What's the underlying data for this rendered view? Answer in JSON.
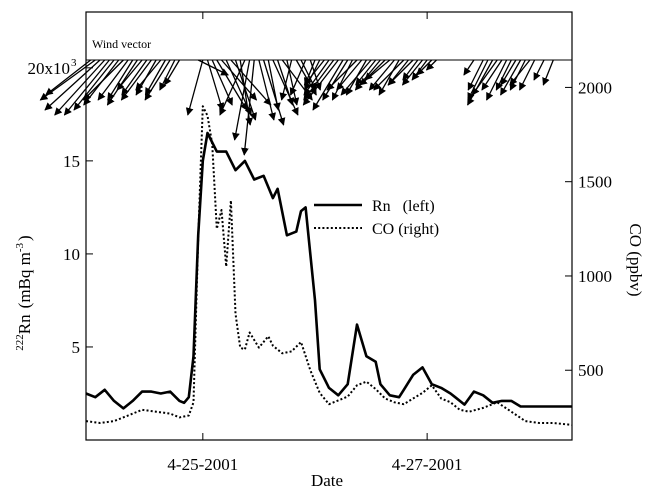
{
  "chart_data": {
    "type": "line",
    "xlabel": "Date",
    "x_tick_labels": [
      "4-25-2001",
      "4-27-2001"
    ],
    "x_range": [
      "2001-04-23T23:00",
      "2001-04-28T07:00"
    ],
    "x_ticks": [
      "2001-04-25T00:00",
      "2001-04-27T00:00"
    ],
    "y_left": {
      "label_sup": "222",
      "label_main": "Rn",
      "label_units": "(mBq m",
      "label_units_sup": "-3",
      "label_close": ")",
      "range": [
        0,
        23000
      ],
      "ticks": [
        5000,
        10000,
        15000,
        20000
      ],
      "tick_labels": [
        "5",
        "10",
        "15",
        "20x10"
      ],
      "multiplier_sup": "3"
    },
    "y_right": {
      "label": "CO (ppbv)",
      "range": [
        130,
        2400
      ],
      "ticks": [
        500,
        1000,
        1500,
        2000
      ],
      "tick_labels": [
        "500",
        "1000",
        "1500",
        "2000"
      ]
    },
    "legend": {
      "position": "upper-right",
      "entries": [
        {
          "text": "Rn   (left)",
          "style": "solid"
        },
        {
          "text": "CO (right)",
          "style": "dotted"
        }
      ]
    },
    "annotation": "Wind vector",
    "series": [
      {
        "name": "Rn (left)",
        "axis": "left",
        "style": "solid",
        "color": "#000000",
        "x": [
          "2001-04-23T23:00",
          "2001-04-24T01:00",
          "2001-04-24T03:00",
          "2001-04-24T05:00",
          "2001-04-24T07:00",
          "2001-04-24T09:00",
          "2001-04-24T11:00",
          "2001-04-24T13:00",
          "2001-04-24T15:00",
          "2001-04-24T17:00",
          "2001-04-24T19:00",
          "2001-04-24T20:00",
          "2001-04-24T21:00",
          "2001-04-24T22:00",
          "2001-04-24T23:00",
          "2001-04-25T00:00",
          "2001-04-25T01:00",
          "2001-04-25T03:00",
          "2001-04-25T05:00",
          "2001-04-25T07:00",
          "2001-04-25T09:00",
          "2001-04-25T11:00",
          "2001-04-25T13:00",
          "2001-04-25T15:00",
          "2001-04-25T16:00",
          "2001-04-25T18:00",
          "2001-04-25T20:00",
          "2001-04-25T21:00",
          "2001-04-25T22:00",
          "2001-04-26T00:00",
          "2001-04-26T01:00",
          "2001-04-26T03:00",
          "2001-04-26T05:00",
          "2001-04-26T07:00",
          "2001-04-26T09:00",
          "2001-04-26T11:00",
          "2001-04-26T13:00",
          "2001-04-26T14:00",
          "2001-04-26T16:00",
          "2001-04-26T18:00",
          "2001-04-26T19:00",
          "2001-04-26T21:00",
          "2001-04-26T23:00",
          "2001-04-27T01:00",
          "2001-04-27T03:00",
          "2001-04-27T05:00",
          "2001-04-27T06:00",
          "2001-04-27T08:00",
          "2001-04-27T10:00",
          "2001-04-27T12:00",
          "2001-04-27T14:00",
          "2001-04-27T16:00",
          "2001-04-27T18:00",
          "2001-04-27T20:00",
          "2001-04-27T22:00",
          "2001-04-28T00:00",
          "2001-04-28T02:00",
          "2001-04-28T04:00",
          "2001-04-28T06:00",
          "2001-04-28T07:00"
        ],
        "y": [
          2500,
          2300,
          2700,
          2100,
          1700,
          2100,
          2600,
          2600,
          2500,
          2600,
          2100,
          2000,
          2300,
          4500,
          11000,
          15000,
          16500,
          15500,
          15500,
          14500,
          15000,
          14000,
          14200,
          13000,
          13500,
          11000,
          11200,
          12300,
          12500,
          7500,
          3800,
          2800,
          2400,
          3000,
          6200,
          4500,
          4200,
          3000,
          2400,
          2300,
          2700,
          3500,
          3900,
          3000,
          2800,
          2500,
          2300,
          1900,
          2600,
          2400,
          2000,
          2100,
          2100,
          1800,
          1800,
          1800,
          1800,
          1800,
          1800,
          1800
        ],
        "note": "trailing values approximate"
      },
      {
        "name": "CO (right)",
        "axis": "right",
        "style": "dotted",
        "color": "#000000",
        "x": [
          "2001-04-23T23:00",
          "2001-04-24T02:00",
          "2001-04-24T05:00",
          "2001-04-24T08:00",
          "2001-04-24T11:00",
          "2001-04-24T14:00",
          "2001-04-24T17:00",
          "2001-04-24T19:00",
          "2001-04-24T21:00",
          "2001-04-24T22:00",
          "2001-04-24T23:00",
          "2001-04-25T00:00",
          "2001-04-25T01:00",
          "2001-04-25T02:00",
          "2001-04-25T03:00",
          "2001-04-25T04:00",
          "2001-04-25T05:00",
          "2001-04-25T06:00",
          "2001-04-25T07:00",
          "2001-04-25T08:00",
          "2001-04-25T09:00",
          "2001-04-25T10:00",
          "2001-04-25T12:00",
          "2001-04-25T14:00",
          "2001-04-25T15:00",
          "2001-04-25T17:00",
          "2001-04-25T19:00",
          "2001-04-25T21:00",
          "2001-04-25T23:00",
          "2001-04-26T01:00",
          "2001-04-26T03:00",
          "2001-04-26T05:00",
          "2001-04-26T07:00",
          "2001-04-26T09:00",
          "2001-04-26T11:00",
          "2001-04-26T13:00",
          "2001-04-26T15:00",
          "2001-04-26T17:00",
          "2001-04-26T19:00",
          "2001-04-26T21:00",
          "2001-04-26T23:00",
          "2001-04-27T01:00",
          "2001-04-27T03:00",
          "2001-04-27T05:00",
          "2001-04-27T07:00",
          "2001-04-27T09:00",
          "2001-04-27T12:00",
          "2001-04-27T15:00",
          "2001-04-27T18:00",
          "2001-04-27T21:00",
          "2001-04-28T00:00",
          "2001-04-28T03:00",
          "2001-04-28T07:00"
        ],
        "y": [
          230,
          220,
          230,
          260,
          290,
          280,
          270,
          250,
          260,
          330,
          1200,
          1900,
          1850,
          1700,
          1250,
          1350,
          1050,
          1400,
          800,
          620,
          610,
          700,
          620,
          680,
          630,
          590,
          600,
          650,
          500,
          380,
          320,
          340,
          360,
          420,
          440,
          400,
          350,
          330,
          320,
          350,
          380,
          420,
          350,
          330,
          290,
          280,
          300,
          330,
          280,
          230,
          220,
          220,
          210
        ]
      }
    ],
    "wind_vectors": {
      "description": "Wind direction/speed vectors drawn from a baseline at the top of the plot; listed as [date, x-component, y-component] in relative speed units (y negative = pointing down).",
      "vectors": [
        [
          "2001-04-24T00:00",
          -0.9,
          -0.7
        ],
        [
          "2001-04-24T01:00",
          -1.1,
          -0.8
        ],
        [
          "2001-04-24T02:00",
          -1.1,
          -1.0
        ],
        [
          "2001-04-24T03:00",
          -1.0,
          -1.1
        ],
        [
          "2001-04-24T04:00",
          -0.9,
          -1.1
        ],
        [
          "2001-04-24T05:00",
          -0.8,
          -1.0
        ],
        [
          "2001-04-24T06:00",
          -0.7,
          -0.9
        ],
        [
          "2001-04-24T07:00",
          -0.8,
          -0.8
        ],
        [
          "2001-04-24T08:00",
          -0.6,
          -0.8
        ],
        [
          "2001-04-24T09:00",
          -0.5,
          -0.8
        ],
        [
          "2001-04-24T10:00",
          -0.6,
          -0.9
        ],
        [
          "2001-04-24T11:00",
          -0.5,
          -0.6
        ],
        [
          "2001-04-24T12:00",
          -0.5,
          -0.7
        ],
        [
          "2001-04-24T13:00",
          -0.6,
          -0.8
        ],
        [
          "2001-04-24T14:00",
          -0.4,
          -0.7
        ],
        [
          "2001-04-24T15:00",
          -0.5,
          -0.6
        ],
        [
          "2001-04-24T16:00",
          -0.4,
          -0.7
        ],
        [
          "2001-04-24T17:00",
          -0.5,
          -0.8
        ],
        [
          "2001-04-24T18:00",
          -0.3,
          -0.6
        ],
        [
          "2001-04-24T19:00",
          -0.3,
          -0.5
        ],
        [
          "2001-04-24T23:00",
          0.6,
          -0.3
        ],
        [
          "2001-04-25T00:00",
          -0.3,
          -1.1
        ],
        [
          "2001-04-25T01:00",
          0.3,
          -1.0
        ],
        [
          "2001-04-25T02:00",
          0.4,
          -0.9
        ],
        [
          "2001-04-25T03:00",
          0.6,
          -1.0
        ],
        [
          "2001-04-25T04:00",
          0.7,
          -0.8
        ],
        [
          "2001-04-25T05:00",
          0.5,
          -1.1
        ],
        [
          "2001-04-25T06:00",
          0.8,
          -0.9
        ],
        [
          "2001-04-25T07:00",
          0.4,
          -1.2
        ],
        [
          "2001-04-25T08:00",
          0.2,
          -1.3
        ],
        [
          "2001-04-25T09:00",
          -0.5,
          -1.1
        ],
        [
          "2001-04-25T10:00",
          -0.3,
          -1.6
        ],
        [
          "2001-04-25T11:00",
          -0.2,
          -1.9
        ],
        [
          "2001-04-25T12:00",
          0.3,
          -1.2
        ],
        [
          "2001-04-25T13:00",
          0.4,
          -1.3
        ],
        [
          "2001-04-25T14:00",
          0.2,
          -1.0
        ],
        [
          "2001-04-25T15:00",
          0.5,
          -1.1
        ],
        [
          "2001-04-25T16:00",
          0.3,
          -0.9
        ],
        [
          "2001-04-25T17:00",
          0.6,
          -0.8
        ],
        [
          "2001-04-25T18:00",
          0.2,
          -0.9
        ],
        [
          "2001-04-25T19:00",
          -0.2,
          -0.8
        ],
        [
          "2001-04-25T20:00",
          0.4,
          -0.7
        ],
        [
          "2001-04-25T21:00",
          0.3,
          -0.6
        ],
        [
          "2001-04-25T22:00",
          -0.3,
          -0.7
        ],
        [
          "2001-04-25T23:00",
          0.2,
          -0.6
        ],
        [
          "2001-04-26T00:00",
          -0.2,
          -0.5
        ],
        [
          "2001-04-26T01:00",
          -0.3,
          -0.6
        ],
        [
          "2001-04-26T02:00",
          -0.4,
          -0.5
        ],
        [
          "2001-04-26T03:00",
          -0.5,
          -0.7
        ],
        [
          "2001-04-26T04:00",
          -0.6,
          -0.8
        ],
        [
          "2001-04-26T05:00",
          -0.7,
          -0.9
        ],
        [
          "2001-04-26T06:00",
          -0.6,
          -1.0
        ],
        [
          "2001-04-26T07:00",
          -0.5,
          -0.8
        ],
        [
          "2001-04-26T08:00",
          -0.4,
          -0.8
        ],
        [
          "2001-04-26T09:00",
          -0.6,
          -0.6
        ],
        [
          "2001-04-26T10:00",
          -0.5,
          -0.6
        ],
        [
          "2001-04-26T11:00",
          -0.4,
          -0.7
        ],
        [
          "2001-04-26T12:00",
          -0.6,
          -0.7
        ],
        [
          "2001-04-26T13:00",
          -0.4,
          -0.5
        ],
        [
          "2001-04-26T14:00",
          -0.5,
          -0.6
        ],
        [
          "2001-04-26T15:00",
          -0.4,
          -0.4
        ],
        [
          "2001-04-26T16:00",
          -0.6,
          -0.5
        ],
        [
          "2001-04-26T17:00",
          -0.5,
          -0.6
        ],
        [
          "2001-04-26T18:00",
          -0.4,
          -0.7
        ],
        [
          "2001-04-26T19:00",
          -0.6,
          -0.6
        ],
        [
          "2001-04-26T20:00",
          -0.4,
          -0.5
        ],
        [
          "2001-04-26T21:00",
          -0.5,
          -0.5
        ],
        [
          "2001-04-26T22:00",
          -0.3,
          -0.4
        ],
        [
          "2001-04-26T23:00",
          -0.4,
          -0.5
        ],
        [
          "2001-04-27T00:00",
          -0.3,
          -0.4
        ],
        [
          "2001-04-27T01:00",
          -0.3,
          -0.3
        ],
        [
          "2001-04-27T02:00",
          -0.2,
          -0.2
        ],
        [
          "2001-04-27T10:00",
          -0.2,
          -0.3
        ],
        [
          "2001-04-27T12:00",
          -0.3,
          -0.6
        ],
        [
          "2001-04-27T13:00",
          -0.4,
          -0.8
        ],
        [
          "2001-04-27T14:00",
          -0.5,
          -0.9
        ],
        [
          "2001-04-27T15:00",
          -0.5,
          -0.7
        ],
        [
          "2001-04-27T16:00",
          -0.4,
          -0.6
        ],
        [
          "2001-04-27T17:00",
          -0.4,
          -0.8
        ],
        [
          "2001-04-27T18:00",
          -0.3,
          -0.6
        ],
        [
          "2001-04-27T19:00",
          -0.3,
          -0.5
        ],
        [
          "2001-04-27T20:00",
          -0.4,
          -0.7
        ],
        [
          "2001-04-27T21:00",
          -0.3,
          -0.6
        ],
        [
          "2001-04-27T22:00",
          -0.4,
          -0.5
        ],
        [
          "2001-04-27T23:00",
          -0.3,
          -0.6
        ],
        [
          "2001-04-28T01:00",
          -0.2,
          -0.4
        ],
        [
          "2001-04-28T03:00",
          -0.2,
          -0.5
        ]
      ]
    }
  }
}
